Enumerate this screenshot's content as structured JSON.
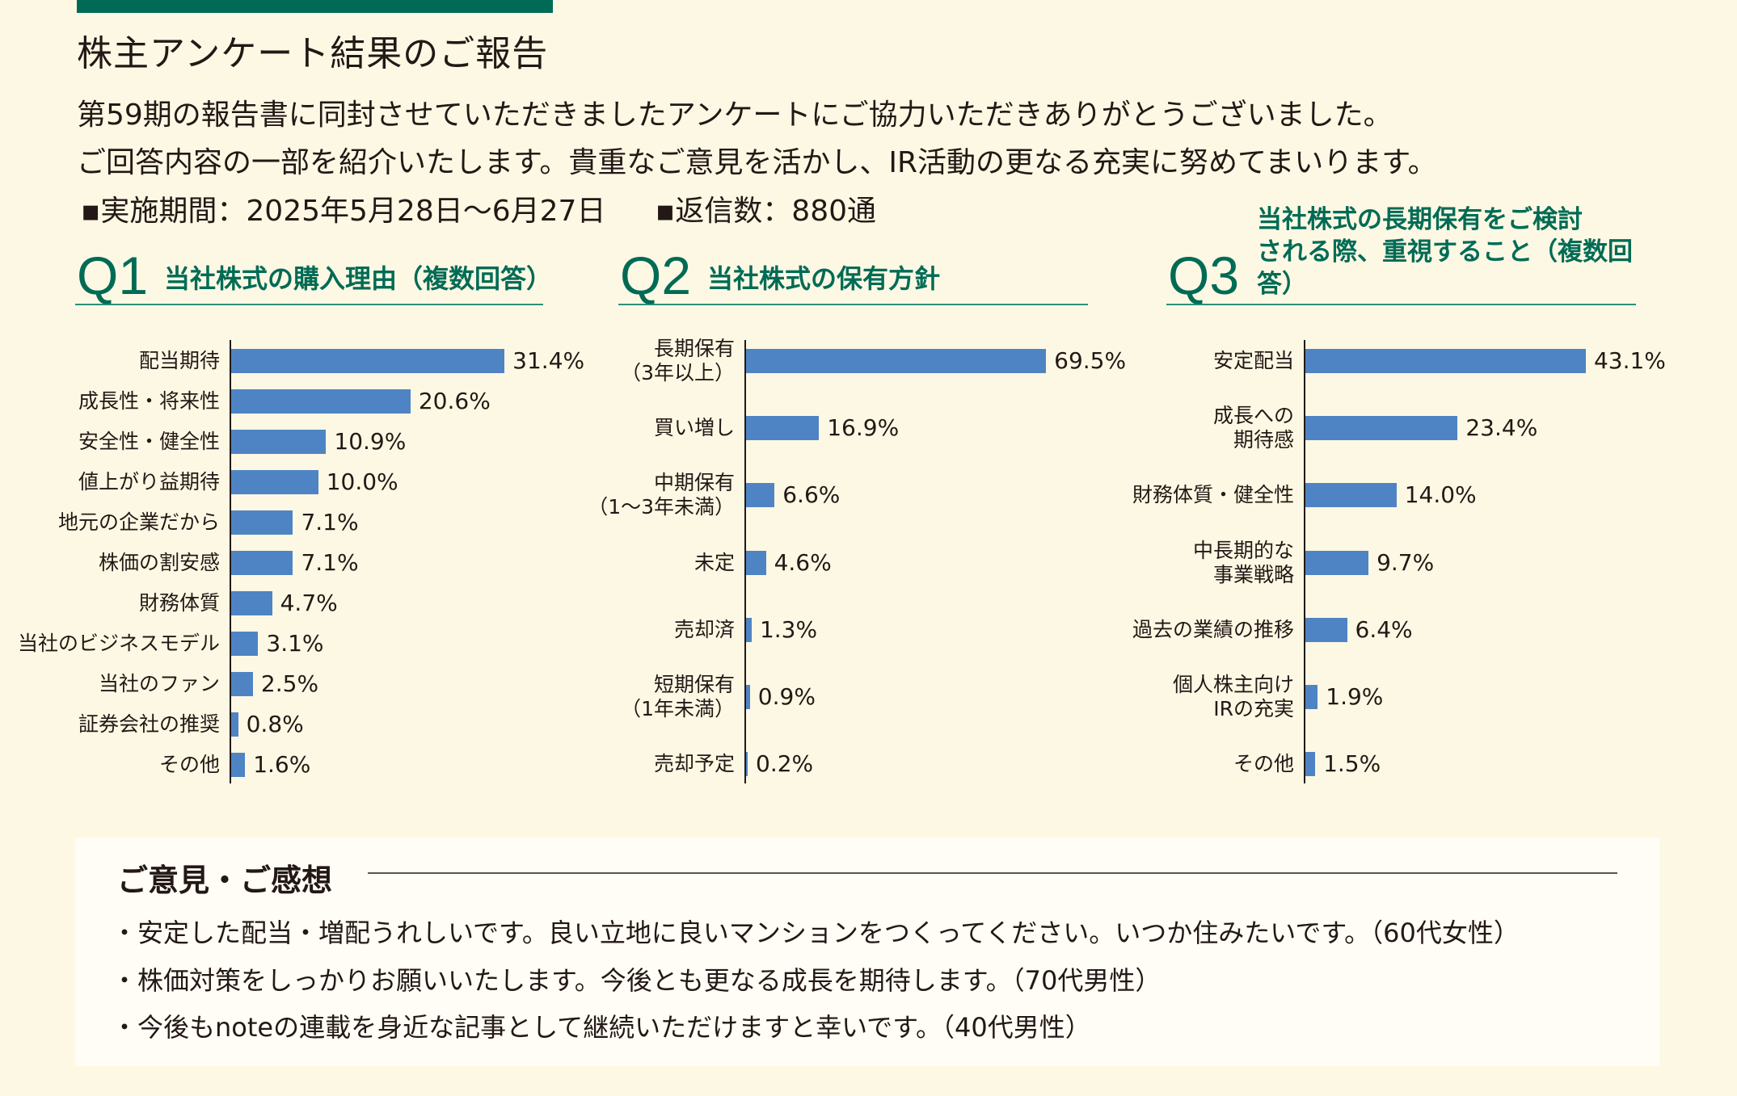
{
  "header": {
    "title": "株主アンケート結果のご報告",
    "intro_lines": [
      "第59期の報告書に同封させていただきましたアンケートにご協力いただきありがとうございました。",
      "ご回答内容の一部を紹介いたします。貴重なご意見を活かし、IR活動の更なる充実に努めてまいります。"
    ],
    "period": "▪実施期間：2025年5月28日〜6月27日",
    "responses": "▪返信数：880通"
  },
  "colors": {
    "accent": "#006b55",
    "bar": "#4f84c4",
    "background": "#fdf8e4"
  },
  "chart_data": [
    {
      "type": "bar",
      "orientation": "horizontal",
      "number": "Q1",
      "title": "当社株式の購入理由（複数回答）",
      "categories": [
        "配当期待",
        "成長性・将来性",
        "安全性・健全性",
        "値上がり益期待",
        "地元の企業だから",
        "株価の割安感",
        "財務体質",
        "当社のビジネスモデル",
        "当社のファン",
        "証券会社の推奨",
        "その他"
      ],
      "values": [
        31.4,
        20.6,
        10.9,
        10.0,
        7.1,
        7.1,
        4.7,
        3.1,
        2.5,
        0.8,
        1.6
      ],
      "value_labels": [
        "31.4%",
        "20.6%",
        "10.9%",
        "10.0%",
        "7.1%",
        "7.1%",
        "4.7%",
        "3.1%",
        "2.5%",
        "0.8%",
        "1.6%"
      ],
      "unit": "%"
    },
    {
      "type": "bar",
      "orientation": "horizontal",
      "number": "Q2",
      "title": "当社株式の保有方針",
      "categories": [
        "長期保有\n（3年以上）",
        "買い増し",
        "中期保有\n（1〜3年未満）",
        "未定",
        "売却済",
        "短期保有\n（1年未満）",
        "売却予定"
      ],
      "values": [
        69.5,
        16.9,
        6.6,
        4.6,
        1.3,
        0.9,
        0.2
      ],
      "value_labels": [
        "69.5%",
        "16.9%",
        "6.6%",
        "4.6%",
        "1.3%",
        "0.9%",
        "0.2%"
      ],
      "unit": "%"
    },
    {
      "type": "bar",
      "orientation": "horizontal",
      "number": "Q3",
      "title": "当社株式の長期保有をご検討\nされる際、重視すること（複数回答）",
      "categories": [
        "安定配当",
        "成長への\n期待感",
        "財務体質・健全性",
        "中長期的な\n事業戦略",
        "過去の業績の推移",
        "個人株主向け\nIRの充実",
        "その他"
      ],
      "values": [
        43.1,
        23.4,
        14.0,
        9.7,
        6.4,
        1.9,
        1.5
      ],
      "value_labels": [
        "43.1%",
        "23.4%",
        "14.0%",
        "9.7%",
        "6.4%",
        "1.9%",
        "1.5%"
      ],
      "unit": "%"
    }
  ],
  "comments": {
    "heading": "ご意見・ご感想",
    "items": [
      "・安定した配当・増配うれしいです。良い立地に良いマンションをつくってください。いつか住みたいです。（60代女性）",
      "・株価対策をしっかりお願いいたします。今後とも更なる成長を期待します。（70代男性）",
      "・今後もnoteの連載を身近な記事として継続いただけますと幸いです。（40代男性）"
    ]
  }
}
